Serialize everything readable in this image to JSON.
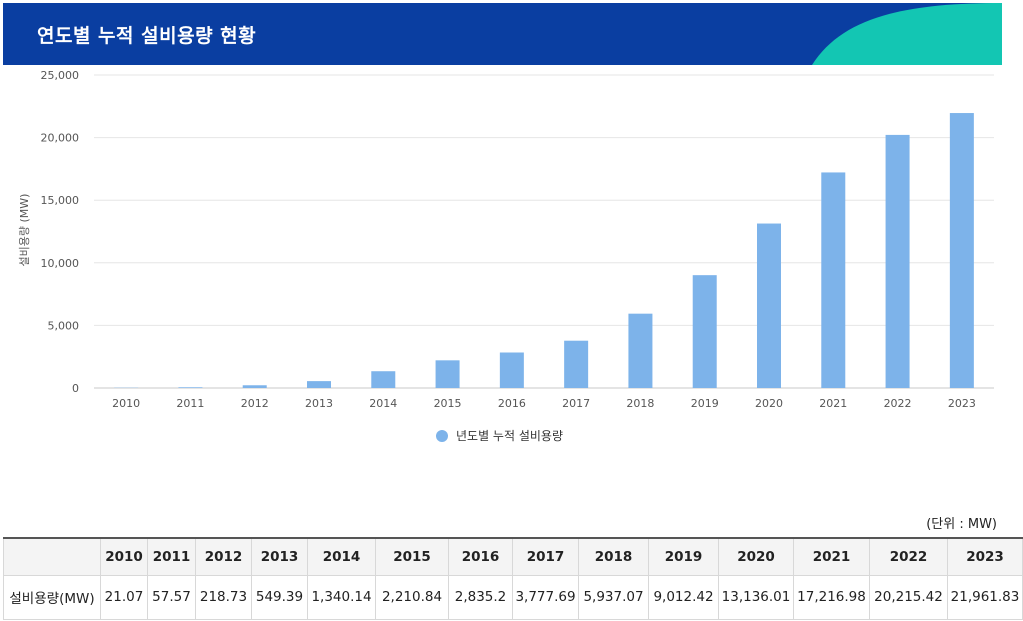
{
  "header": {
    "title": "연도별 누적 설비용량 현황"
  },
  "colors": {
    "header_bg": "#0a3ea1",
    "header_accent": "#13c6b3",
    "bar": "#7db3ea"
  },
  "chart_data": {
    "type": "bar",
    "categories": [
      "2010",
      "2011",
      "2012",
      "2013",
      "2014",
      "2015",
      "2016",
      "2017",
      "2018",
      "2019",
      "2020",
      "2021",
      "2022",
      "2023"
    ],
    "series": [
      {
        "name": "년도별 누적 설비용량",
        "values": [
          21.07,
          57.57,
          218.73,
          549.39,
          1340.14,
          2210.84,
          2835.2,
          3777.69,
          5937.07,
          9012.42,
          13136.01,
          17216.98,
          20215.42,
          21961.83
        ]
      }
    ],
    "ylabel": "설비용량 (MW)",
    "ylim": [
      0,
      25000
    ],
    "yticks": [
      0,
      5000,
      10000,
      15000,
      20000,
      25000
    ],
    "ytick_labels": [
      "0",
      "5,000",
      "10,000",
      "15,000",
      "20,000",
      "25,000"
    ],
    "grid": true,
    "legend_position": "bottom-center"
  },
  "legend": {
    "label": "년도별 누적 설비용량"
  },
  "table": {
    "unit_note": "(단위 : MW)",
    "header_blank": "",
    "row_label": "설비용량(MW)",
    "years": [
      "2010",
      "2011",
      "2012",
      "2013",
      "2014",
      "2015",
      "2016",
      "2017",
      "2018",
      "2019",
      "2020",
      "2021",
      "2022",
      "2023"
    ],
    "values": [
      "21.07",
      "57.57",
      "218.73",
      "549.39",
      "1,340.14",
      "2,210.84",
      "2,835.2",
      "3,777.69",
      "5,937.07",
      "9,012.42",
      "13,136.01",
      "17,216.98",
      "20,215.42",
      "21,961.83"
    ]
  }
}
